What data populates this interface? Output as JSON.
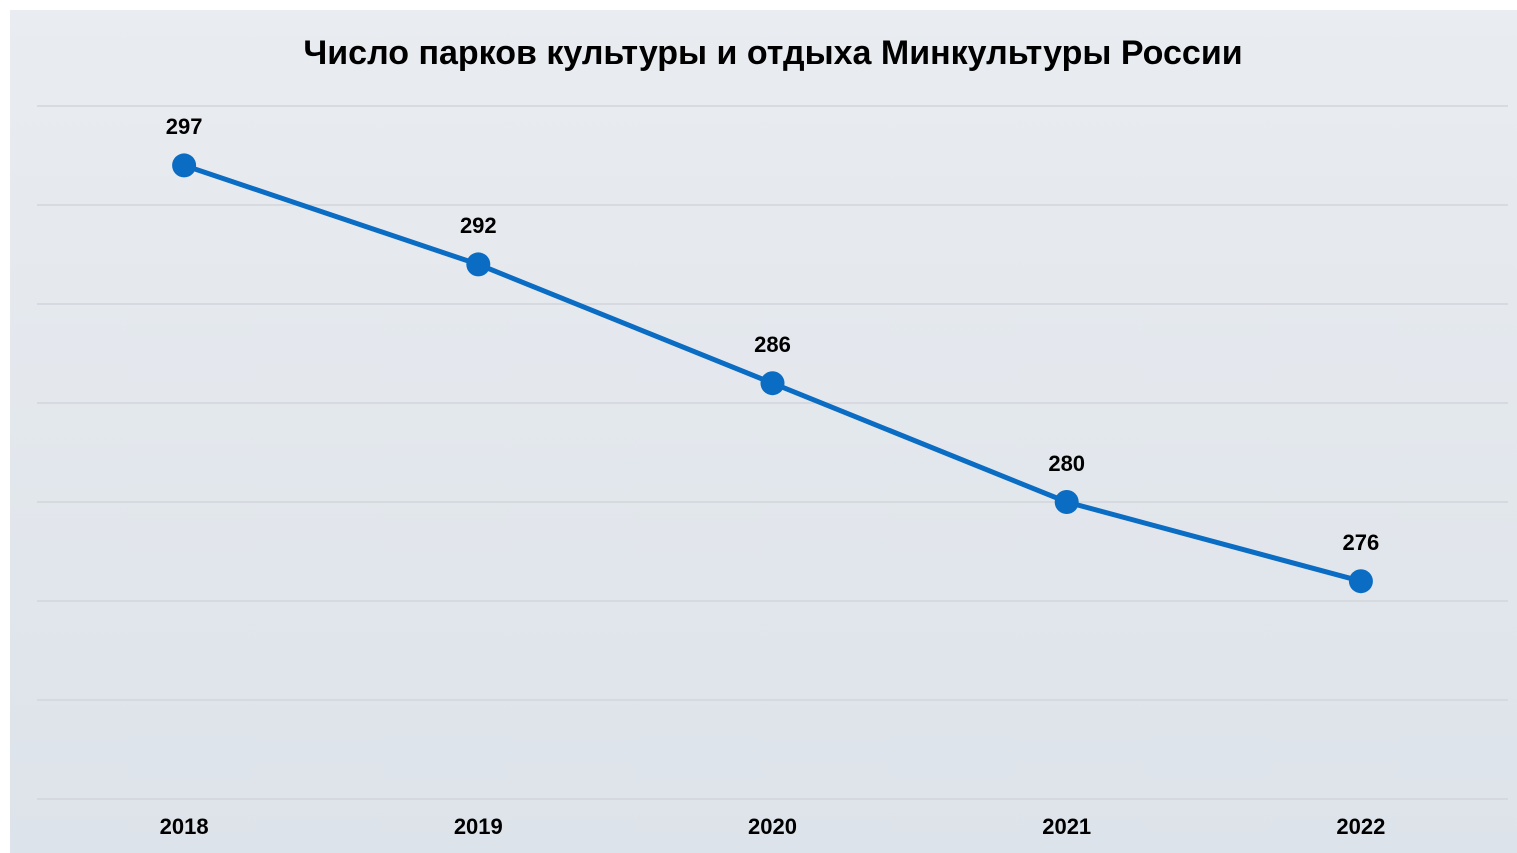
{
  "chart_data": {
    "type": "line",
    "title": "Число парков культуры и отдыха Минкультуры России",
    "categories": [
      "2018",
      "2019",
      "2020",
      "2021",
      "2022"
    ],
    "values": [
      297,
      292,
      286,
      280,
      276
    ],
    "color": "#0a6cc2",
    "ylim": [
      265,
      300
    ],
    "yticks": [
      265,
      270,
      275,
      280,
      285,
      290,
      295,
      300
    ],
    "grid": true
  }
}
